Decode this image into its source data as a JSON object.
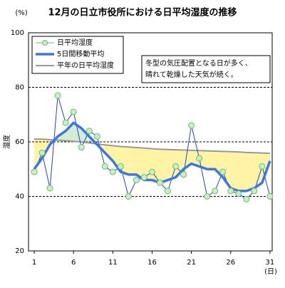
{
  "chart_data": {
    "type": "line",
    "title": "12月の日立市役所における日平均湿度の推移",
    "y_label": "湿度",
    "y_unit": "(%)",
    "x_unit": "(日)",
    "x": [
      1,
      2,
      3,
      4,
      5,
      6,
      7,
      8,
      9,
      10,
      11,
      12,
      13,
      14,
      15,
      16,
      17,
      18,
      19,
      20,
      21,
      22,
      23,
      24,
      25,
      26,
      27,
      28,
      29,
      30,
      31
    ],
    "xlim": [
      0.27,
      31.28
    ],
    "xticks": [
      1,
      6,
      11,
      16,
      21,
      26,
      31
    ],
    "ylim": [
      20,
      100
    ],
    "yticks": [
      20,
      40,
      60,
      80,
      100
    ],
    "grid": true,
    "series": [
      {
        "name": "日平均湿度",
        "color": "#2b3fb8",
        "values": [
          49,
          56,
          43,
          77,
          67,
          71,
          58,
          64,
          62,
          51,
          49,
          51,
          40,
          46,
          47,
          49,
          45,
          42,
          51,
          48,
          66,
          54,
          40,
          42,
          49,
          42,
          41,
          39,
          42,
          51,
          40
        ]
      },
      {
        "name": "5日間移動平均",
        "color": "#3a78e0",
        "values": [
          50,
          54,
          59,
          62,
          64,
          67,
          65,
          62,
          59,
          56,
          53,
          49,
          48,
          48,
          46,
          46,
          45,
          46,
          47,
          50,
          52,
          51,
          50,
          50,
          47,
          43,
          42,
          42,
          43,
          45,
          53
        ]
      },
      {
        "name": "平年の日平均湿度",
        "color": "#999999",
        "values": [
          61,
          61,
          60.8,
          60.6,
          60.4,
          60.2,
          60,
          59.6,
          59.2,
          58.9,
          58.6,
          58.3,
          58.1,
          57.9,
          57.7,
          57.5,
          57.3,
          57.2,
          57.1,
          57,
          56.9,
          56.8,
          56.7,
          56.6,
          56.5,
          56.4,
          56.3,
          56.1,
          56,
          55.9,
          55.8
        ]
      }
    ],
    "annotation": [
      "冬型の気圧配置となる日が多く、",
      "晴れて乾燥した天気が続く。"
    ]
  }
}
